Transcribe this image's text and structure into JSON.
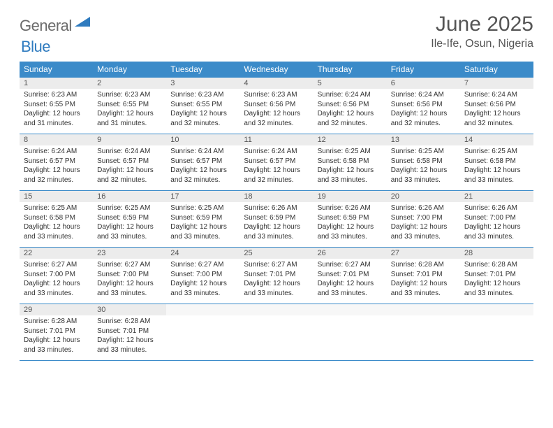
{
  "logo": {
    "text_general": "General",
    "text_blue": "Blue"
  },
  "header": {
    "month_title": "June 2025",
    "location": "Ile-Ife, Osun, Nigeria"
  },
  "colors": {
    "header_bg": "#3b8bc9",
    "header_text": "#ffffff",
    "daynum_bg": "#ececec",
    "week_border": "#3b8bc9",
    "body_text": "#333333",
    "title_text": "#555555",
    "logo_gray": "#6b6b6b",
    "logo_blue": "#2f7bbf"
  },
  "day_headers": [
    "Sunday",
    "Monday",
    "Tuesday",
    "Wednesday",
    "Thursday",
    "Friday",
    "Saturday"
  ],
  "weeks": [
    [
      {
        "num": "1",
        "sunrise": "Sunrise: 6:23 AM",
        "sunset": "Sunset: 6:55 PM",
        "daylight": "Daylight: 12 hours and 31 minutes."
      },
      {
        "num": "2",
        "sunrise": "Sunrise: 6:23 AM",
        "sunset": "Sunset: 6:55 PM",
        "daylight": "Daylight: 12 hours and 31 minutes."
      },
      {
        "num": "3",
        "sunrise": "Sunrise: 6:23 AM",
        "sunset": "Sunset: 6:55 PM",
        "daylight": "Daylight: 12 hours and 32 minutes."
      },
      {
        "num": "4",
        "sunrise": "Sunrise: 6:23 AM",
        "sunset": "Sunset: 6:56 PM",
        "daylight": "Daylight: 12 hours and 32 minutes."
      },
      {
        "num": "5",
        "sunrise": "Sunrise: 6:24 AM",
        "sunset": "Sunset: 6:56 PM",
        "daylight": "Daylight: 12 hours and 32 minutes."
      },
      {
        "num": "6",
        "sunrise": "Sunrise: 6:24 AM",
        "sunset": "Sunset: 6:56 PM",
        "daylight": "Daylight: 12 hours and 32 minutes."
      },
      {
        "num": "7",
        "sunrise": "Sunrise: 6:24 AM",
        "sunset": "Sunset: 6:56 PM",
        "daylight": "Daylight: 12 hours and 32 minutes."
      }
    ],
    [
      {
        "num": "8",
        "sunrise": "Sunrise: 6:24 AM",
        "sunset": "Sunset: 6:57 PM",
        "daylight": "Daylight: 12 hours and 32 minutes."
      },
      {
        "num": "9",
        "sunrise": "Sunrise: 6:24 AM",
        "sunset": "Sunset: 6:57 PM",
        "daylight": "Daylight: 12 hours and 32 minutes."
      },
      {
        "num": "10",
        "sunrise": "Sunrise: 6:24 AM",
        "sunset": "Sunset: 6:57 PM",
        "daylight": "Daylight: 12 hours and 32 minutes."
      },
      {
        "num": "11",
        "sunrise": "Sunrise: 6:24 AM",
        "sunset": "Sunset: 6:57 PM",
        "daylight": "Daylight: 12 hours and 32 minutes."
      },
      {
        "num": "12",
        "sunrise": "Sunrise: 6:25 AM",
        "sunset": "Sunset: 6:58 PM",
        "daylight": "Daylight: 12 hours and 33 minutes."
      },
      {
        "num": "13",
        "sunrise": "Sunrise: 6:25 AM",
        "sunset": "Sunset: 6:58 PM",
        "daylight": "Daylight: 12 hours and 33 minutes."
      },
      {
        "num": "14",
        "sunrise": "Sunrise: 6:25 AM",
        "sunset": "Sunset: 6:58 PM",
        "daylight": "Daylight: 12 hours and 33 minutes."
      }
    ],
    [
      {
        "num": "15",
        "sunrise": "Sunrise: 6:25 AM",
        "sunset": "Sunset: 6:58 PM",
        "daylight": "Daylight: 12 hours and 33 minutes."
      },
      {
        "num": "16",
        "sunrise": "Sunrise: 6:25 AM",
        "sunset": "Sunset: 6:59 PM",
        "daylight": "Daylight: 12 hours and 33 minutes."
      },
      {
        "num": "17",
        "sunrise": "Sunrise: 6:25 AM",
        "sunset": "Sunset: 6:59 PM",
        "daylight": "Daylight: 12 hours and 33 minutes."
      },
      {
        "num": "18",
        "sunrise": "Sunrise: 6:26 AM",
        "sunset": "Sunset: 6:59 PM",
        "daylight": "Daylight: 12 hours and 33 minutes."
      },
      {
        "num": "19",
        "sunrise": "Sunrise: 6:26 AM",
        "sunset": "Sunset: 6:59 PM",
        "daylight": "Daylight: 12 hours and 33 minutes."
      },
      {
        "num": "20",
        "sunrise": "Sunrise: 6:26 AM",
        "sunset": "Sunset: 7:00 PM",
        "daylight": "Daylight: 12 hours and 33 minutes."
      },
      {
        "num": "21",
        "sunrise": "Sunrise: 6:26 AM",
        "sunset": "Sunset: 7:00 PM",
        "daylight": "Daylight: 12 hours and 33 minutes."
      }
    ],
    [
      {
        "num": "22",
        "sunrise": "Sunrise: 6:27 AM",
        "sunset": "Sunset: 7:00 PM",
        "daylight": "Daylight: 12 hours and 33 minutes."
      },
      {
        "num": "23",
        "sunrise": "Sunrise: 6:27 AM",
        "sunset": "Sunset: 7:00 PM",
        "daylight": "Daylight: 12 hours and 33 minutes."
      },
      {
        "num": "24",
        "sunrise": "Sunrise: 6:27 AM",
        "sunset": "Sunset: 7:00 PM",
        "daylight": "Daylight: 12 hours and 33 minutes."
      },
      {
        "num": "25",
        "sunrise": "Sunrise: 6:27 AM",
        "sunset": "Sunset: 7:01 PM",
        "daylight": "Daylight: 12 hours and 33 minutes."
      },
      {
        "num": "26",
        "sunrise": "Sunrise: 6:27 AM",
        "sunset": "Sunset: 7:01 PM",
        "daylight": "Daylight: 12 hours and 33 minutes."
      },
      {
        "num": "27",
        "sunrise": "Sunrise: 6:28 AM",
        "sunset": "Sunset: 7:01 PM",
        "daylight": "Daylight: 12 hours and 33 minutes."
      },
      {
        "num": "28",
        "sunrise": "Sunrise: 6:28 AM",
        "sunset": "Sunset: 7:01 PM",
        "daylight": "Daylight: 12 hours and 33 minutes."
      }
    ],
    [
      {
        "num": "29",
        "sunrise": "Sunrise: 6:28 AM",
        "sunset": "Sunset: 7:01 PM",
        "daylight": "Daylight: 12 hours and 33 minutes."
      },
      {
        "num": "30",
        "sunrise": "Sunrise: 6:28 AM",
        "sunset": "Sunset: 7:01 PM",
        "daylight": "Daylight: 12 hours and 33 minutes."
      },
      null,
      null,
      null,
      null,
      null
    ]
  ]
}
